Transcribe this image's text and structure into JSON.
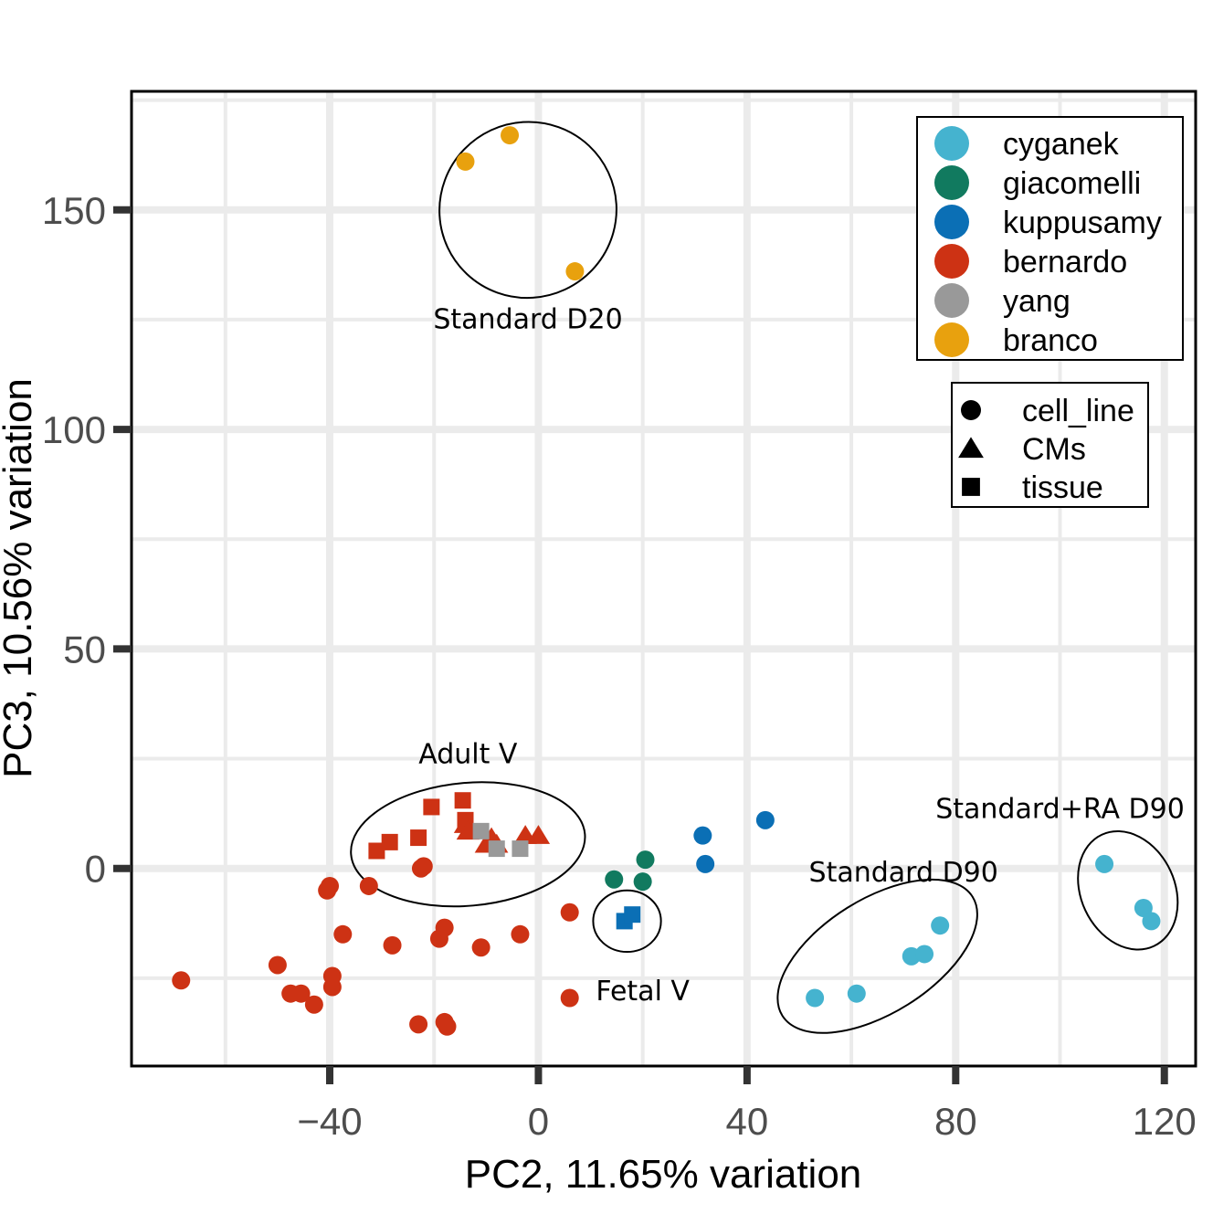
{
  "chart_data": {
    "type": "scatter",
    "title": "",
    "xlabel": "PC2, 11.65% variation",
    "ylabel": "PC3, 10.56% variation",
    "xlim": [
      -78,
      126
    ],
    "ylim": [
      -45,
      177
    ],
    "xticks": [
      -40,
      0,
      40,
      80,
      120
    ],
    "xtick_labels": [
      "−40",
      "0",
      "40",
      "80",
      "120"
    ],
    "yticks": [
      0,
      50,
      100,
      150
    ],
    "ytick_labels": [
      "0",
      "50",
      "100",
      "150"
    ],
    "grid": true,
    "color_legend": {
      "placement": "top-right",
      "entries": [
        {
          "name": "cyganek",
          "color": "#45b3cf"
        },
        {
          "name": "giacomelli",
          "color": "#117a5f"
        },
        {
          "name": "kuppusamy",
          "color": "#0b6fb5"
        },
        {
          "name": "bernardo",
          "color": "#cd3214"
        },
        {
          "name": "yang",
          "color": "#999999"
        },
        {
          "name": "branco",
          "color": "#e8a10e"
        }
      ]
    },
    "shape_legend": {
      "placement": "right",
      "entries": [
        {
          "name": "cell_line",
          "shape": "circle"
        },
        {
          "name": "CMs",
          "shape": "triangle"
        },
        {
          "name": "tissue",
          "shape": "square"
        }
      ]
    },
    "series": [
      {
        "name": "branco",
        "shape": "circle",
        "points": [
          [
            -14,
            161
          ],
          [
            -5.5,
            167
          ],
          [
            7,
            136
          ]
        ]
      },
      {
        "name": "bernardo",
        "shape": "square",
        "points": [
          [
            -20.5,
            14
          ],
          [
            -14.5,
            15.5
          ],
          [
            -14,
            11
          ],
          [
            -23,
            7
          ],
          [
            -28.5,
            6
          ],
          [
            -31,
            4
          ]
        ]
      },
      {
        "name": "bernardo",
        "shape": "triangle",
        "points": [
          [
            -14,
            10
          ],
          [
            -13.5,
            8.5
          ],
          [
            -10,
            5.5
          ],
          [
            -9,
            7
          ],
          [
            -8,
            5.5
          ],
          [
            -2.5,
            7.5
          ],
          [
            0,
            7.5
          ]
        ]
      },
      {
        "name": "yang",
        "shape": "square",
        "points": [
          [
            -11,
            8.5
          ],
          [
            -8,
            4.5
          ],
          [
            -3.5,
            4.5
          ]
        ]
      },
      {
        "name": "bernardo",
        "shape": "circle",
        "points": [
          [
            -22.5,
            0
          ],
          [
            -22,
            0.5
          ],
          [
            -40,
            -4
          ],
          [
            -40.5,
            -5
          ],
          [
            -32.5,
            -4
          ],
          [
            -37.5,
            -15
          ],
          [
            -28,
            -17.5
          ],
          [
            -19,
            -16
          ],
          [
            -18,
            -13.5
          ],
          [
            -11,
            -18
          ],
          [
            -3.5,
            -15
          ],
          [
            6,
            -10
          ],
          [
            6,
            -29.5
          ],
          [
            -50,
            -22
          ],
          [
            -47.5,
            -28.5
          ],
          [
            -45.5,
            -28.5
          ],
          [
            -43,
            -31
          ],
          [
            -39.5,
            -24.5
          ],
          [
            -39.5,
            -27
          ],
          [
            -68.5,
            -25.5
          ],
          [
            -23,
            -35.5
          ],
          [
            -18,
            -35
          ],
          [
            -17.5,
            -36
          ]
        ]
      },
      {
        "name": "giacomelli",
        "shape": "circle",
        "points": [
          [
            14.5,
            -2.5
          ],
          [
            20.5,
            2
          ],
          [
            20,
            -3
          ]
        ]
      },
      {
        "name": "kuppusamy",
        "shape": "square",
        "points": [
          [
            16.5,
            -12
          ],
          [
            18,
            -10.5
          ]
        ]
      },
      {
        "name": "kuppusamy",
        "shape": "circle",
        "points": [
          [
            31.5,
            7.5
          ],
          [
            32,
            1
          ],
          [
            43.5,
            11
          ]
        ]
      },
      {
        "name": "cyganek",
        "shape": "circle",
        "points": [
          [
            53,
            -29.5
          ],
          [
            61,
            -28.5
          ],
          [
            71.5,
            -20
          ],
          [
            74,
            -19.5
          ],
          [
            77,
            -13
          ],
          [
            108.5,
            1
          ],
          [
            116,
            -9
          ],
          [
            117.5,
            -12
          ]
        ]
      }
    ],
    "annotations": [
      {
        "text": "Standard D20",
        "cx": -2,
        "cy": 150,
        "rx": 17,
        "ry": 20,
        "rot": -25
      },
      {
        "text": "Adult V",
        "cx": -13.5,
        "cy": 5.5,
        "rx": 22.5,
        "ry": 14,
        "rot": -5
      },
      {
        "text": "Fetal V",
        "cx": 17,
        "cy": -12,
        "rx": 6.5,
        "ry": 7,
        "rot": 0
      },
      {
        "text": "Standard D90",
        "cx": 65,
        "cy": -20,
        "rx": 21.5,
        "ry": 13,
        "rot": -32
      },
      {
        "text": "Standard+RA D90",
        "cx": 113,
        "cy": -5,
        "rx": 9,
        "ry": 14,
        "rot": -25
      }
    ]
  }
}
